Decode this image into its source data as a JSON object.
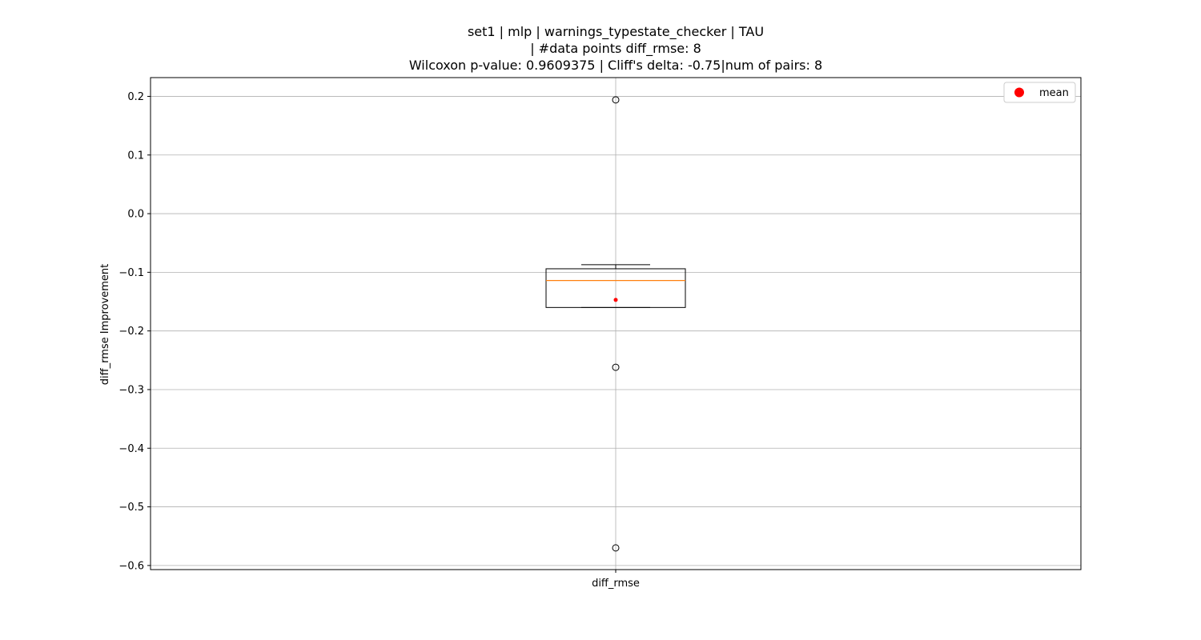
{
  "chart_data": {
    "type": "box",
    "title_lines": [
      "set1 | mlp | warnings_typestate_checker | TAU",
      "| #data points diff_rmse: 8",
      "Wilcoxon p-value: 0.9609375 | Cliff's delta: -0.75|num of pairs: 8"
    ],
    "xlabel": "diff_rmse",
    "ylabel": "diff_rmse Improvement",
    "categories": [
      "diff_rmse"
    ],
    "ylim": [
      -0.607,
      0.232
    ],
    "yticks": [
      0.2,
      0.1,
      0.0,
      -0.1,
      -0.2,
      -0.3,
      -0.4,
      -0.5,
      -0.6
    ],
    "ytick_labels": [
      "0.2",
      "0.1",
      "0.0",
      "−0.1",
      "−0.2",
      "−0.3",
      "−0.4",
      "−0.5",
      "−0.6"
    ],
    "grid": true,
    "box": {
      "whisker_high": -0.087,
      "q3": -0.094,
      "median": -0.114,
      "q1": -0.16,
      "whisker_low": -0.16,
      "mean": -0.147,
      "outliers": [
        0.194,
        -0.262,
        -0.57
      ]
    },
    "legend": {
      "position": "top-right",
      "entries": [
        {
          "label": "mean",
          "color": "#ff0000"
        }
      ]
    },
    "colors": {
      "median": "#ff7f0e",
      "mean": "#ff0000",
      "box": "#000000",
      "grid": "#b0b0b0"
    }
  }
}
